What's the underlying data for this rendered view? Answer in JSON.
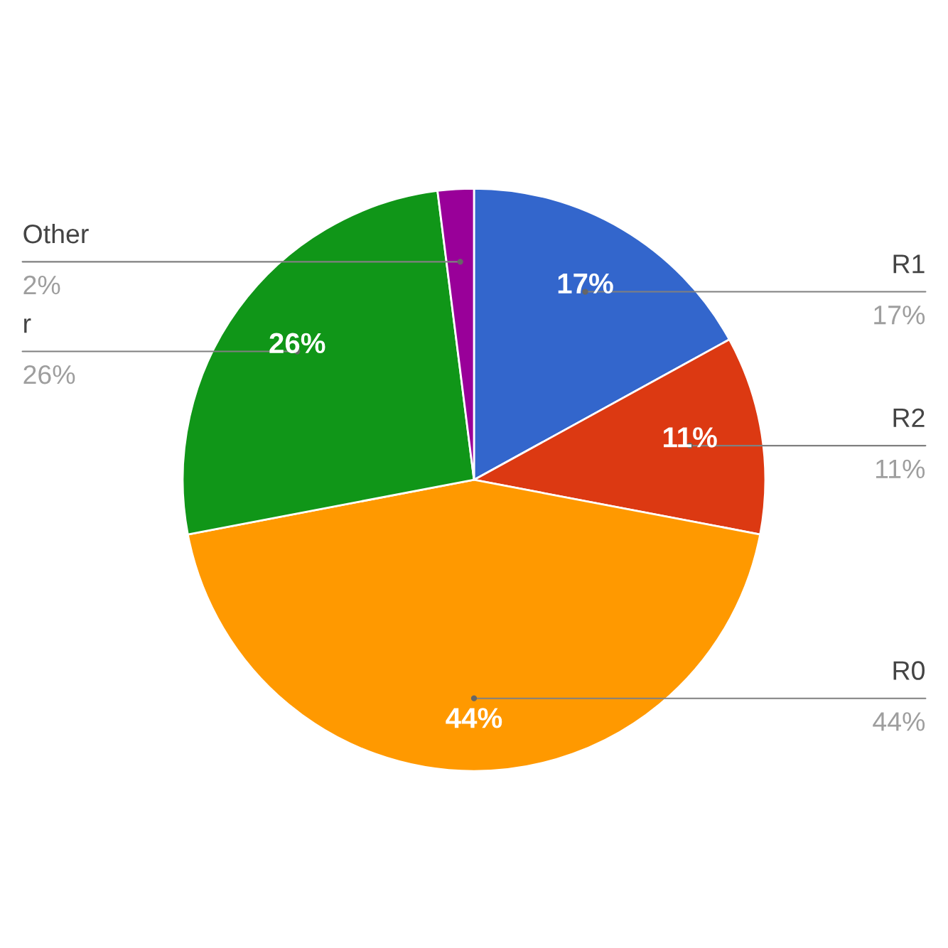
{
  "chart_data": {
    "type": "pie",
    "categories": [
      "R1",
      "R2",
      "R0",
      "r",
      "Other"
    ],
    "values": [
      17,
      11,
      44,
      26,
      2
    ],
    "colors": [
      "#3366cc",
      "#dc3912",
      "#ff9900",
      "#109618",
      "#990099"
    ],
    "value_labels": [
      "17%",
      "11%",
      "44%",
      "26%",
      "2%"
    ]
  }
}
